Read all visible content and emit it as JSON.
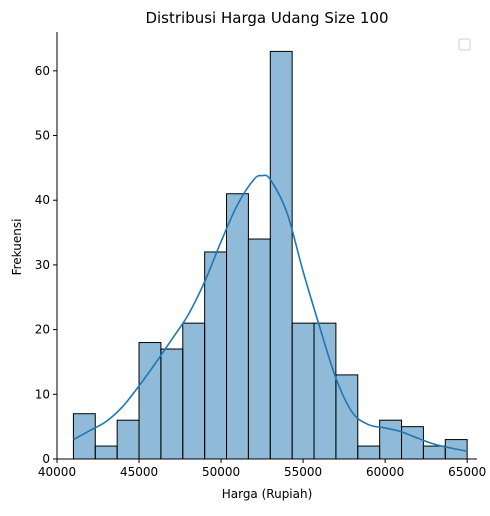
{
  "chart_data": {
    "type": "bar",
    "subtype": "histogram-with-kde",
    "title": "Distribusi Harga Udang Size 100",
    "xlabel": "Harga (Rupiah)",
    "ylabel": "Frekuensi",
    "xlim": [
      40000,
      65600
    ],
    "ylim": [
      0,
      66
    ],
    "xticks": [
      "40000",
      "45000",
      "50000",
      "55000",
      "60000",
      "65000"
    ],
    "yticks": [
      "0",
      "10",
      "20",
      "30",
      "40",
      "50",
      "60"
    ],
    "bin_edges": [
      41000,
      42333,
      43667,
      45000,
      46333,
      47667,
      49000,
      50333,
      51667,
      53000,
      54333,
      55667,
      57000,
      58333,
      59667,
      61000,
      62333,
      63667,
      65000
    ],
    "values": [
      7,
      2,
      6,
      18,
      17,
      21,
      32,
      41,
      34,
      63,
      21,
      21,
      13,
      2,
      6,
      5,
      2,
      3
    ],
    "kde": {
      "x": [
        41000,
        42000,
        43000,
        44000,
        45000,
        46000,
        47000,
        48000,
        49000,
        50000,
        51000,
        52000,
        52500,
        53000,
        54000,
        55000,
        56000,
        57000,
        58000,
        59000,
        60000,
        61000,
        62000,
        63000,
        64000,
        65000
      ],
      "y": [
        3,
        4.4,
        5.8,
        8.1,
        11.3,
        14.8,
        18.5,
        22.3,
        27.4,
        33.6,
        39.3,
        43.2,
        43.8,
        43.2,
        38.2,
        29.0,
        20.5,
        12.5,
        7.2,
        5.3,
        4.8,
        4.2,
        3.2,
        2.3,
        1.7,
        1.2
      ]
    },
    "legend": {
      "placement": "top-right",
      "entries": []
    },
    "grid": false,
    "colors": {
      "bar_fill": "#1f77b4",
      "bar_fill_opacity": 0.5,
      "bar_edge": "#000000",
      "kde_line": "#1f77b4"
    }
  }
}
